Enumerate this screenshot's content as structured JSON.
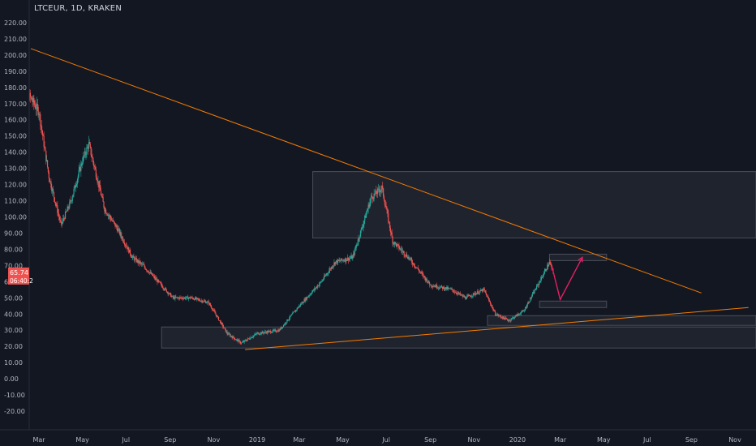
{
  "header": {
    "symbol": "LTCEUR",
    "separator": ", ",
    "interval": "1D",
    "exchange": "KRAKEN"
  },
  "price_labels": {
    "last_price": "65.74",
    "countdown": "06:40:2"
  },
  "colors": {
    "background": "#131722",
    "up_candle": "#26a69a",
    "down_candle": "#ef5350",
    "trendline": "#f57c00",
    "zone_fill": "#2a2e39",
    "zone_border": "#4a4e59",
    "projection_arrow": "#e91e63",
    "price_badge": "#ef5350",
    "axis_text": "#b2b5be"
  },
  "chart_data": {
    "type": "candlestick",
    "title": "LTCEUR, 1D, KRAKEN",
    "ylim": [
      -25,
      225
    ],
    "y_ticks": [
      "220.00",
      "210.00",
      "200.00",
      "190.00",
      "180.00",
      "170.00",
      "160.00",
      "150.00",
      "140.00",
      "130.00",
      "120.00",
      "110.00",
      "100.00",
      "90.00",
      "80.00",
      "70.00",
      "60.00",
      "50.00",
      "40.00",
      "30.00",
      "20.00",
      "10.00",
      "0.00",
      "-10.00",
      "-20.00"
    ],
    "x_ticks": [
      "Mar",
      "May",
      "Jul",
      "Sep",
      "Nov",
      "2019",
      "Mar",
      "May",
      "Jul",
      "Sep",
      "Nov",
      "2020",
      "Mar",
      "May",
      "Jul",
      "Sep",
      "Nov"
    ],
    "x_tick_dates": [
      "2018-03",
      "2018-05",
      "2018-07",
      "2018-09",
      "2018-11",
      "2019-01",
      "2019-03",
      "2019-05",
      "2019-07",
      "2019-09",
      "2019-11",
      "2020-01",
      "2020-03",
      "2020-05",
      "2020-07",
      "2020-09",
      "2020-11"
    ],
    "price_series": [
      {
        "date": "2018-02-01",
        "value": 195
      },
      {
        "date": "2018-02-15",
        "value": 175
      },
      {
        "date": "2018-03-01",
        "value": 165
      },
      {
        "date": "2018-03-15",
        "value": 125
      },
      {
        "date": "2018-04-01",
        "value": 95
      },
      {
        "date": "2018-04-15",
        "value": 110
      },
      {
        "date": "2018-05-01",
        "value": 135
      },
      {
        "date": "2018-05-10",
        "value": 145
      },
      {
        "date": "2018-06-01",
        "value": 105
      },
      {
        "date": "2018-06-20",
        "value": 92
      },
      {
        "date": "2018-07-10",
        "value": 75
      },
      {
        "date": "2018-07-25",
        "value": 70
      },
      {
        "date": "2018-08-15",
        "value": 60
      },
      {
        "date": "2018-09-05",
        "value": 50
      },
      {
        "date": "2018-10-01",
        "value": 50
      },
      {
        "date": "2018-10-25",
        "value": 47
      },
      {
        "date": "2018-11-20",
        "value": 28
      },
      {
        "date": "2018-12-10",
        "value": 22
      },
      {
        "date": "2019-01-01",
        "value": 28
      },
      {
        "date": "2019-02-01",
        "value": 30
      },
      {
        "date": "2019-03-01",
        "value": 45
      },
      {
        "date": "2019-04-01",
        "value": 60
      },
      {
        "date": "2019-04-20",
        "value": 72
      },
      {
        "date": "2019-05-15",
        "value": 75
      },
      {
        "date": "2019-06-10",
        "value": 112
      },
      {
        "date": "2019-06-25",
        "value": 118
      },
      {
        "date": "2019-07-10",
        "value": 85
      },
      {
        "date": "2019-08-01",
        "value": 75
      },
      {
        "date": "2019-09-01",
        "value": 58
      },
      {
        "date": "2019-10-01",
        "value": 55
      },
      {
        "date": "2019-10-20",
        "value": 50
      },
      {
        "date": "2019-11-15",
        "value": 55
      },
      {
        "date": "2019-12-01",
        "value": 40
      },
      {
        "date": "2019-12-20",
        "value": 36
      },
      {
        "date": "2020-01-10",
        "value": 42
      },
      {
        "date": "2020-02-01",
        "value": 60
      },
      {
        "date": "2020-02-15",
        "value": 72
      },
      {
        "date": "2020-02-20",
        "value": 65.74
      }
    ],
    "annotations": {
      "upper_trendline": [
        {
          "date": "2018-01-20",
          "value": 204
        },
        {
          "date": "2020-09-15",
          "value": 53
        }
      ],
      "lower_trendline": [
        {
          "date": "2018-12-15",
          "value": 18
        },
        {
          "date": "2020-11-20",
          "value": 44
        }
      ],
      "zones": [
        {
          "from": "2019-03-20",
          "to": "2020-12-15",
          "top": 128,
          "bottom": 87
        },
        {
          "from": "2018-08-20",
          "to": "2020-12-15",
          "top": 32,
          "bottom": 19
        },
        {
          "from": "2019-11-20",
          "to": "2020-12-15",
          "top": 39,
          "bottom": 33
        },
        {
          "from": "2020-02-15",
          "to": "2020-05-05",
          "top": 77,
          "bottom": 73
        },
        {
          "from": "2020-02-01",
          "to": "2020-05-05",
          "top": 48,
          "bottom": 44
        }
      ],
      "projection_path": [
        {
          "date": "2020-02-18",
          "value": 70
        },
        {
          "date": "2020-03-01",
          "value": 49
        },
        {
          "date": "2020-04-01",
          "value": 75
        }
      ]
    }
  }
}
